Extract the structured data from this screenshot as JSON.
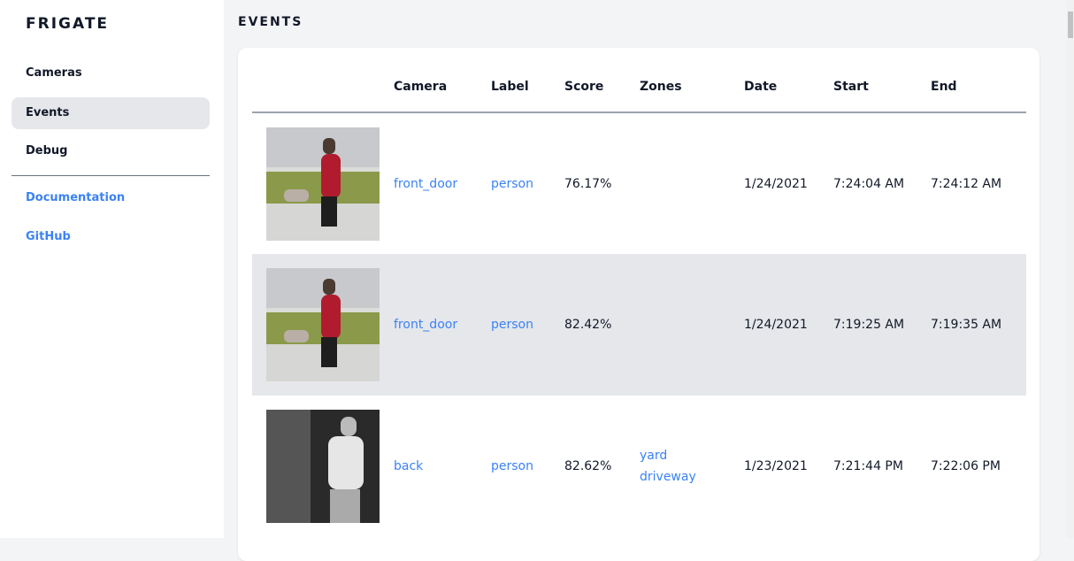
{
  "sidebar": {
    "brand": "FRIGATE",
    "items": [
      {
        "label": "Cameras"
      },
      {
        "label": "Events",
        "active": true
      },
      {
        "label": "Debug"
      }
    ],
    "links": [
      {
        "label": "Documentation"
      },
      {
        "label": "GitHub"
      }
    ]
  },
  "page": {
    "title": "EVENTS"
  },
  "table": {
    "columns": [
      "",
      "Camera",
      "Label",
      "Score",
      "Zones",
      "Date",
      "Start",
      "End"
    ],
    "rows": [
      {
        "thumbnail": "person-red-coat-dog",
        "camera": "front_door",
        "label": "person",
        "score": "76.17%",
        "zones": [
          "",
          ""
        ],
        "date": "1/24/2021",
        "start": "7:24:04 AM",
        "end": "7:24:12 AM"
      },
      {
        "thumbnail": "person-red-coat-dog",
        "camera": "front_door",
        "label": "person",
        "score": "82.42%",
        "zones": [
          "",
          ""
        ],
        "date": "1/24/2021",
        "start": "7:19:25 AM",
        "end": "7:19:35 AM"
      },
      {
        "thumbnail": "person-night-grayscale",
        "camera": "back",
        "label": "person",
        "score": "82.62%",
        "zones": [
          "yard",
          "driveway"
        ],
        "date": "1/23/2021",
        "start": "7:21:44 PM",
        "end": "7:22:06 PM"
      }
    ]
  },
  "colors": {
    "accent": "#3b82f6",
    "active_bg": "#e5e7eb",
    "page_bg": "#f3f4f6"
  }
}
